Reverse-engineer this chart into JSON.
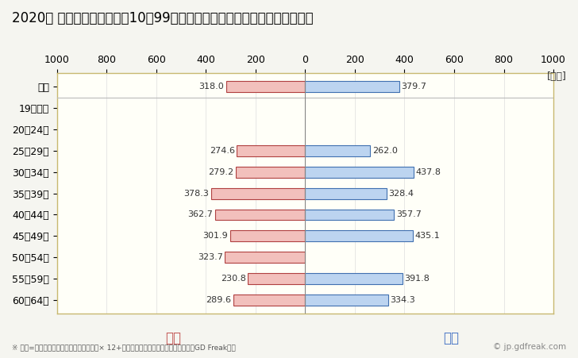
{
  "title": "2020年 民間企業（従業者数10～99人）フルタイム労働者の男女別平均年収",
  "ylabel_unit": "[万円]",
  "footnote": "※ 年収=「きまって支給する現金給与額」× 12+「年間賞与その他特別給与額」としてGD Freak推計",
  "watermark": "© jp.gdfreak.com",
  "categories": [
    "全体",
    "19歳以下",
    "20～24歳",
    "25～29歳",
    "30～34歳",
    "35～39歳",
    "40～44歳",
    "45～49歳",
    "50～54歳",
    "55～59歳",
    "60～64歳"
  ],
  "female_values": [
    318.0,
    0,
    0,
    274.6,
    279.2,
    378.3,
    362.7,
    301.9,
    323.7,
    230.8,
    289.6
  ],
  "male_values": [
    379.7,
    0,
    0,
    262.0,
    437.8,
    328.4,
    357.7,
    435.1,
    0,
    391.8,
    334.3
  ],
  "female_color": "#f2c0bc",
  "male_color": "#bcd4f0",
  "female_edge_color": "#b04040",
  "male_edge_color": "#4070b0",
  "female_label": "女性",
  "male_label": "男性",
  "female_label_color": "#c0504d",
  "male_label_color": "#4472c4",
  "xlim": [
    -1000,
    1000
  ],
  "xticks": [
    -1000,
    -800,
    -600,
    -400,
    -200,
    0,
    200,
    400,
    600,
    800,
    1000
  ],
  "xticklabels": [
    "1000",
    "800",
    "600",
    "400",
    "200",
    "0",
    "200",
    "400",
    "600",
    "800",
    "1000"
  ],
  "background_color": "#f5f5f0",
  "plot_bg_color": "#fffff8",
  "border_color": "#c8b870",
  "grid_color": "#dddddd",
  "title_fontsize": 12,
  "tick_fontsize": 9,
  "bar_height": 0.52
}
